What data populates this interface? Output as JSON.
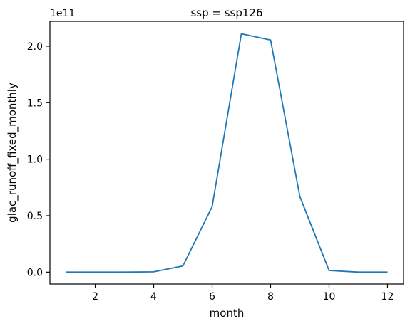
{
  "chart_data": {
    "type": "line",
    "title": "ssp = ssp126",
    "xlabel": "month",
    "ylabel": "glac_runoff_fixed_monthly",
    "y_offset_label": "1e11",
    "y_scale": 100000000000,
    "xlim": [
      0.45,
      12.55
    ],
    "ylim": [
      -0.105,
      2.22
    ],
    "x_ticks": [
      2,
      4,
      6,
      8,
      10,
      12
    ],
    "x_tick_labels": [
      "2",
      "4",
      "6",
      "8",
      "10",
      "12"
    ],
    "y_ticks": [
      0.0,
      0.5,
      1.0,
      1.5,
      2.0
    ],
    "y_tick_labels": [
      "0.0",
      "0.5",
      "1.0",
      "1.5",
      "2.0"
    ],
    "grid": false,
    "series": [
      {
        "color": "#1f77b4",
        "x": [
          1,
          2,
          3,
          4,
          5,
          6,
          7,
          8,
          9,
          10,
          11,
          12
        ],
        "y": [
          0.0,
          0.0,
          0.0,
          0.003,
          0.055,
          0.58,
          2.11,
          2.055,
          0.67,
          0.015,
          0.0,
          0.0
        ]
      }
    ]
  }
}
